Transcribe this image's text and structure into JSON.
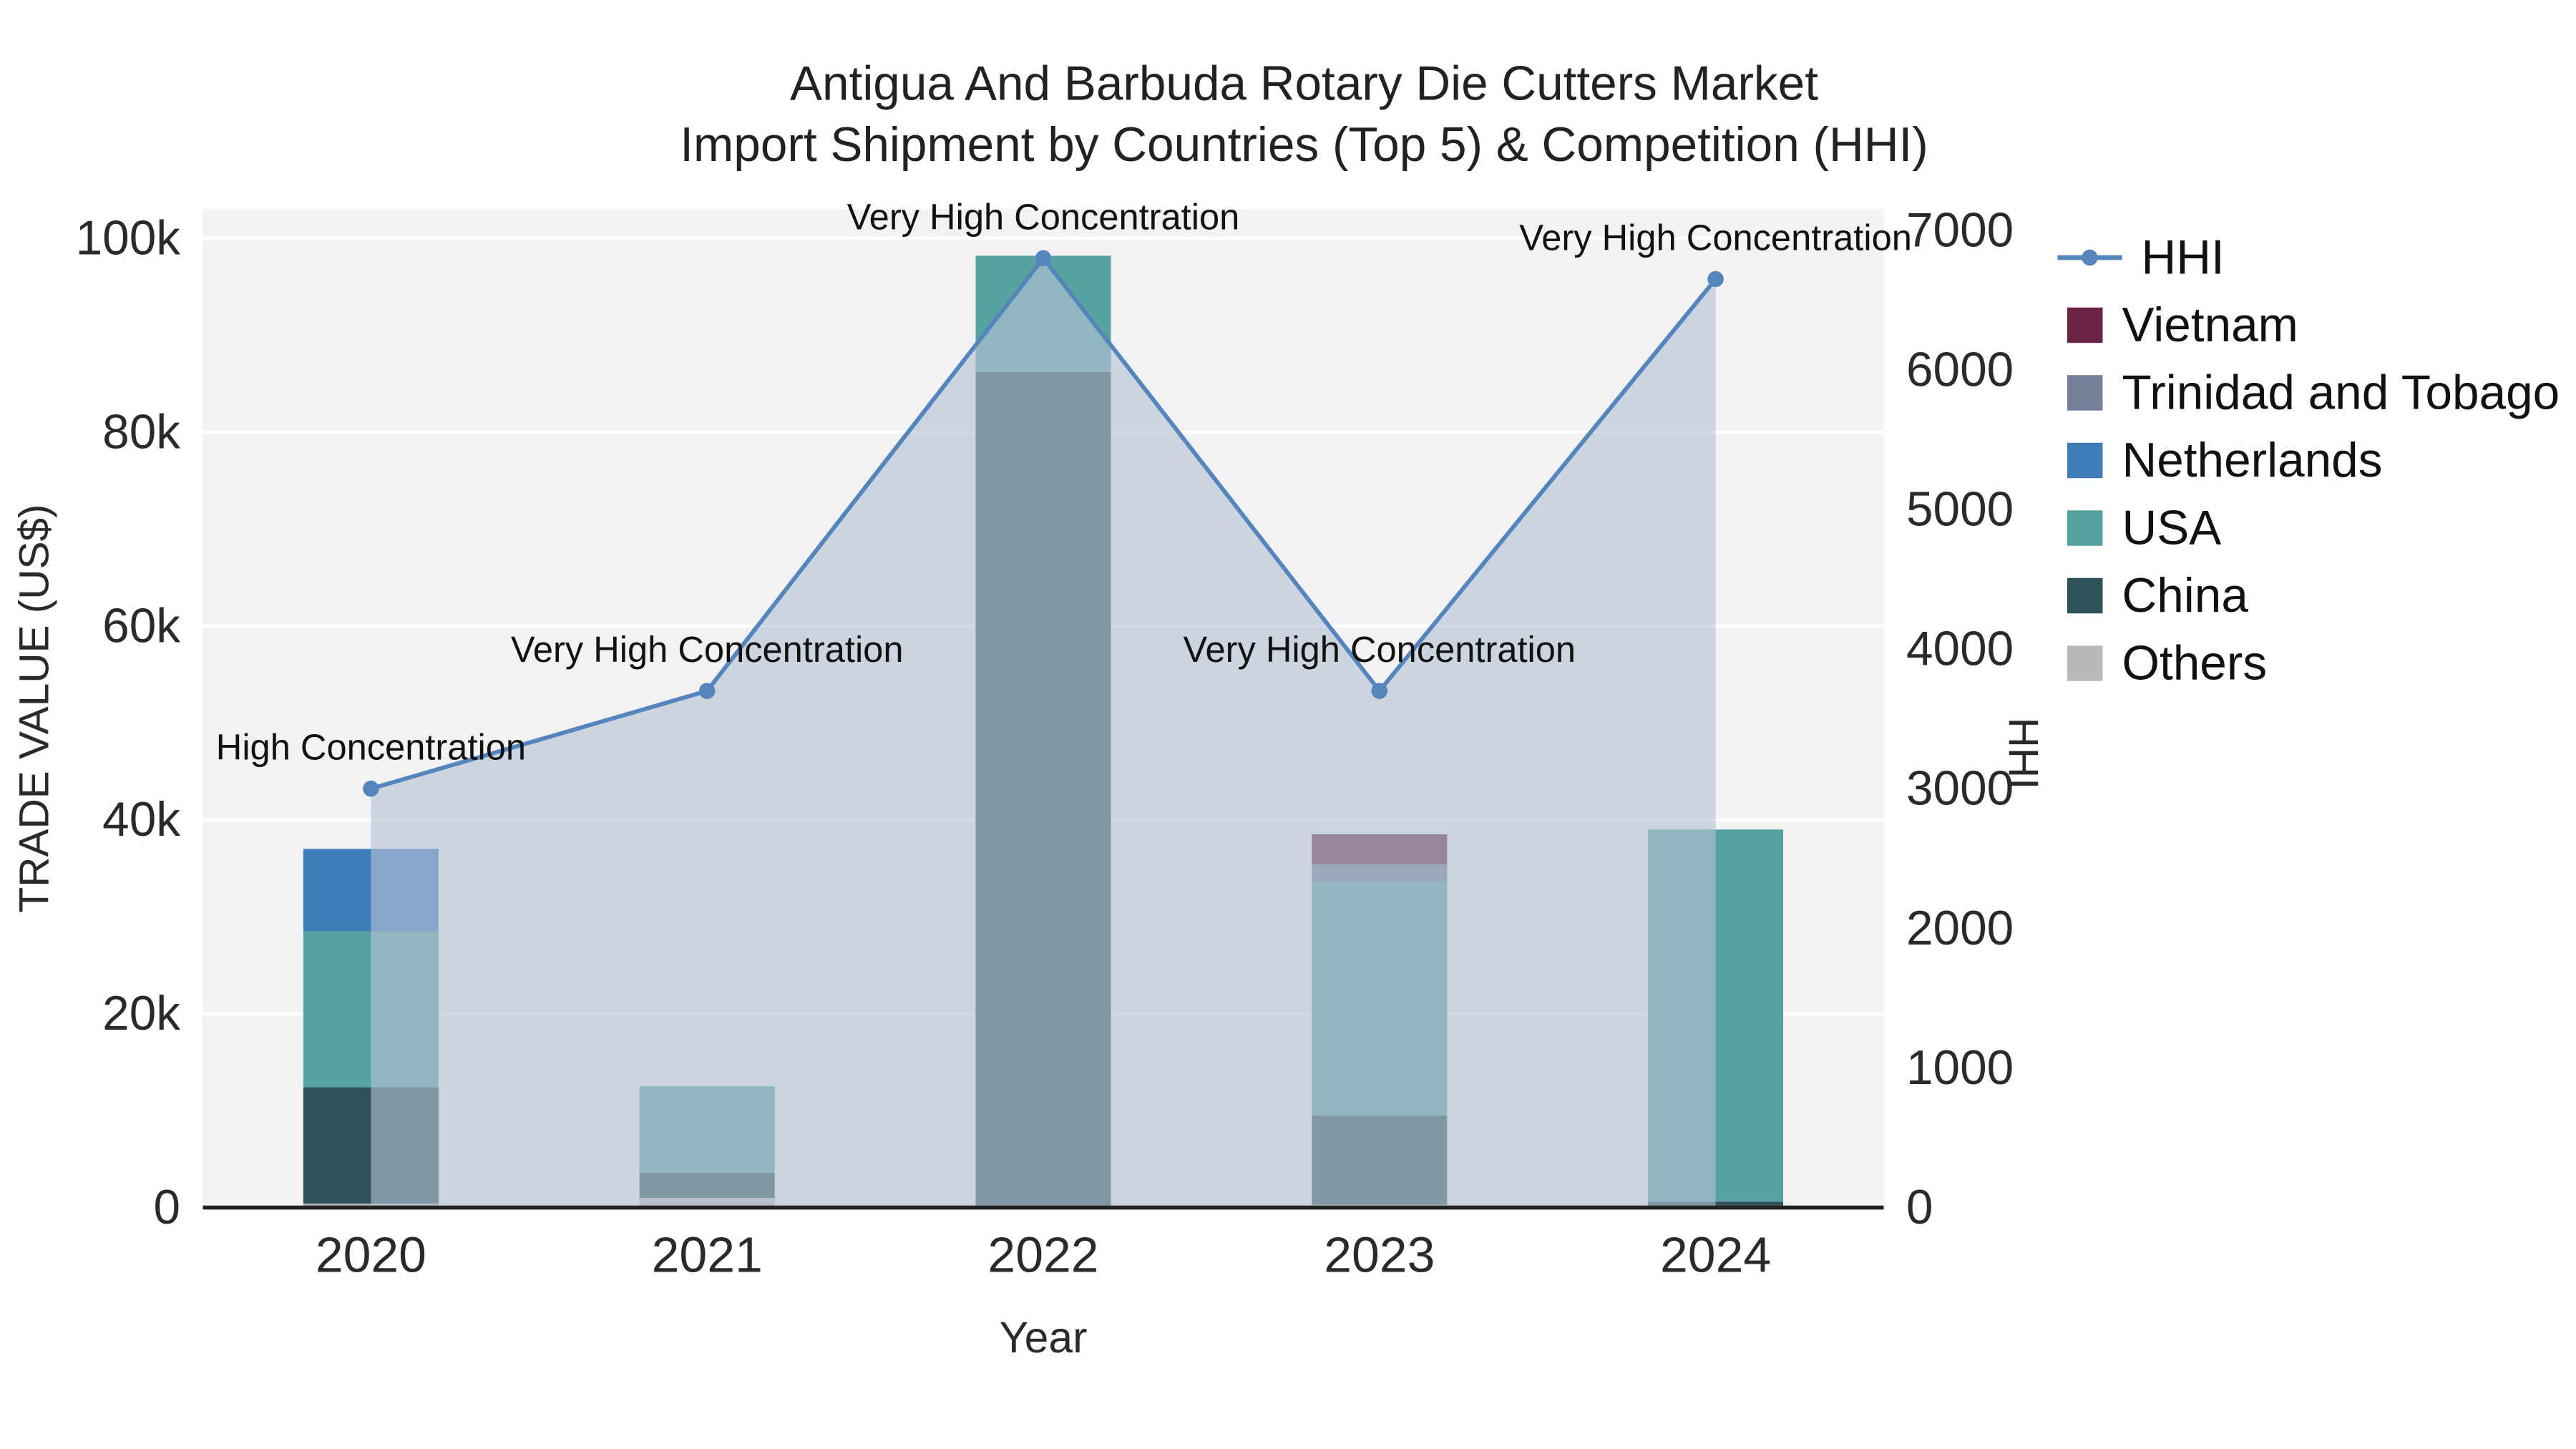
{
  "title": {
    "line1": "Antigua And Barbuda Rotary Die Cutters Market",
    "line2": "Import Shipment by Countries (Top 5) & Competition (HHI)"
  },
  "axes": {
    "left_label": "TRADE VALUE (US$)",
    "right_label": "HHI",
    "x_label": "Year",
    "left_ticks": [
      {
        "value": 0,
        "label": "0"
      },
      {
        "value": 20000,
        "label": "20k"
      },
      {
        "value": 40000,
        "label": "40k"
      },
      {
        "value": 60000,
        "label": "60k"
      },
      {
        "value": 80000,
        "label": "80k"
      },
      {
        "value": 100000,
        "label": "100k"
      }
    ],
    "right_ticks": [
      {
        "value": 0,
        "label": "0"
      },
      {
        "value": 1000,
        "label": "1000"
      },
      {
        "value": 2000,
        "label": "2000"
      },
      {
        "value": 3000,
        "label": "3000"
      },
      {
        "value": 4000,
        "label": "4000"
      },
      {
        "value": 5000,
        "label": "5000"
      },
      {
        "value": 6000,
        "label": "6000"
      },
      {
        "value": 7000,
        "label": "7000"
      }
    ],
    "left_max": 100000,
    "right_max": 7000
  },
  "chart_data": {
    "type": "bar",
    "subtype": "stacked-bar-with-line",
    "categories": [
      "2020",
      "2021",
      "2022",
      "2023",
      "2024"
    ],
    "series": [
      {
        "name": "Others",
        "color": "#b8b8b8",
        "values": [
          400,
          1000,
          200,
          300,
          200
        ]
      },
      {
        "name": "China",
        "color": "#2e5158",
        "values": [
          12000,
          2600,
          86000,
          9200,
          400
        ]
      },
      {
        "name": "USA",
        "color": "#57a3a0",
        "values": [
          16100,
          8900,
          12000,
          24100,
          38400
        ]
      },
      {
        "name": "Netherlands",
        "color": "#3e7cba",
        "values": [
          8500,
          0,
          0,
          0,
          0
        ]
      },
      {
        "name": "Trinidad and Tobago",
        "color": "#75819a",
        "values": [
          0,
          0,
          0,
          1800,
          0
        ]
      },
      {
        "name": "Vietnam",
        "color": "#6b2443",
        "values": [
          0,
          0,
          0,
          3100,
          0
        ]
      }
    ],
    "hhi": {
      "name": "HHI",
      "color": "#5585bd",
      "area_color": "#b3c1d3",
      "area_opacity": 0.62,
      "values": [
        3000,
        3700,
        6800,
        3700,
        6650
      ]
    },
    "annotations": [
      "High Concentration",
      "Very High Concentration",
      "Very High Concentration",
      "Very High Concentration",
      "Very High Concentration"
    ],
    "title": "Antigua And Barbuda Rotary Die Cutters Market Import Shipment by Countries (Top 5) & Competition (HHI)",
    "xlabel": "Year",
    "ylabel_left": "TRADE VALUE (US$)",
    "ylabel_right": "HHI",
    "ylim_left": [
      0,
      103000
    ],
    "ylim_right": [
      0,
      7160
    ],
    "grid": true,
    "legend_position": "right",
    "legend_order": [
      "HHI",
      "Vietnam",
      "Trinidad and Tobago",
      "Netherlands",
      "USA",
      "China",
      "Others"
    ]
  },
  "colors": {
    "plot_bg": "#f2f2f2",
    "grid": "#ffffff",
    "axis_line": "#222222",
    "text": "#2a2a2a",
    "annotation_text": "#111111"
  }
}
